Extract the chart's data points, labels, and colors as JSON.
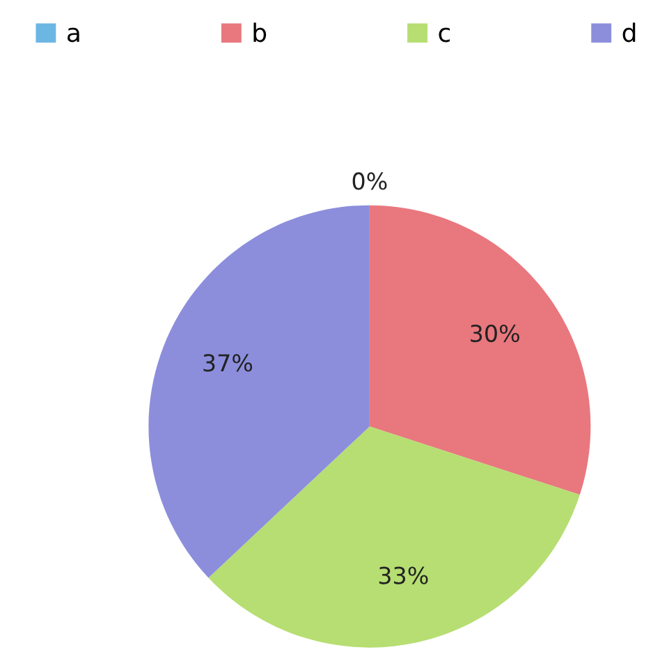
{
  "chart_data": {
    "type": "pie",
    "categories": [
      "a",
      "b",
      "c",
      "d"
    ],
    "values": [
      0,
      30,
      33,
      37
    ],
    "value_labels": [
      "0%",
      "30%",
      "33%",
      "37%"
    ],
    "colors": [
      "#6cb6e4",
      "#e8787e",
      "#b6de72",
      "#8c8edc"
    ],
    "legend": "top"
  }
}
